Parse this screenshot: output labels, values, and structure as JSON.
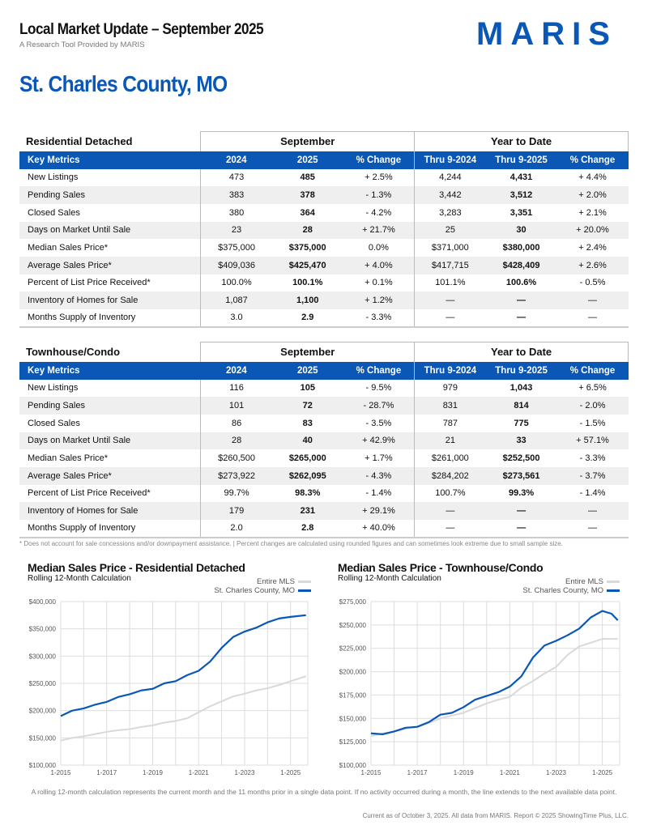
{
  "header": {
    "title": "Local Market Update – September 2025",
    "subtitle": "A Research Tool Provided by MARIS",
    "logo": "MARIS",
    "county": "St. Charles County, MO"
  },
  "columns": {
    "key": "Key Metrics",
    "sept_group": "September",
    "ytd_group": "Year to Date",
    "c1": "2024",
    "c2": "2025",
    "c3": "% Change",
    "c4": "Thru 9-2024",
    "c5": "Thru 9-2025",
    "c6": "% Change"
  },
  "tables": [
    {
      "section": "Residential Detached",
      "rows": [
        [
          "New Listings",
          "473",
          "485",
          "+ 2.5%",
          "4,244",
          "4,431",
          "+ 4.4%"
        ],
        [
          "Pending Sales",
          "383",
          "378",
          "- 1.3%",
          "3,442",
          "3,512",
          "+ 2.0%"
        ],
        [
          "Closed Sales",
          "380",
          "364",
          "- 4.2%",
          "3,283",
          "3,351",
          "+ 2.1%"
        ],
        [
          "Days on Market Until Sale",
          "23",
          "28",
          "+ 21.7%",
          "25",
          "30",
          "+ 20.0%"
        ],
        [
          "Median Sales Price*",
          "$375,000",
          "$375,000",
          "0.0%",
          "$371,000",
          "$380,000",
          "+ 2.4%"
        ],
        [
          "Average Sales Price*",
          "$409,036",
          "$425,470",
          "+ 4.0%",
          "$417,715",
          "$428,409",
          "+ 2.6%"
        ],
        [
          "Percent of List Price Received*",
          "100.0%",
          "100.1%",
          "+ 0.1%",
          "101.1%",
          "100.6%",
          "- 0.5%"
        ],
        [
          "Inventory of Homes for Sale",
          "1,087",
          "1,100",
          "+ 1.2%",
          "—",
          "—",
          "—"
        ],
        [
          "Months Supply of Inventory",
          "3.0",
          "2.9",
          "- 3.3%",
          "—",
          "—",
          "—"
        ]
      ]
    },
    {
      "section": "Townhouse/Condo",
      "rows": [
        [
          "New Listings",
          "116",
          "105",
          "- 9.5%",
          "979",
          "1,043",
          "+ 6.5%"
        ],
        [
          "Pending Sales",
          "101",
          "72",
          "- 28.7%",
          "831",
          "814",
          "- 2.0%"
        ],
        [
          "Closed Sales",
          "86",
          "83",
          "- 3.5%",
          "787",
          "775",
          "- 1.5%"
        ],
        [
          "Days on Market Until Sale",
          "28",
          "40",
          "+ 42.9%",
          "21",
          "33",
          "+ 57.1%"
        ],
        [
          "Median Sales Price*",
          "$260,500",
          "$265,000",
          "+ 1.7%",
          "$261,000",
          "$252,500",
          "- 3.3%"
        ],
        [
          "Average Sales Price*",
          "$273,922",
          "$262,095",
          "- 4.3%",
          "$284,202",
          "$273,561",
          "- 3.7%"
        ],
        [
          "Percent of List Price Received*",
          "99.7%",
          "98.3%",
          "- 1.4%",
          "100.7%",
          "99.3%",
          "- 1.4%"
        ],
        [
          "Inventory of Homes for Sale",
          "179",
          "231",
          "+ 29.1%",
          "—",
          "—",
          "—"
        ],
        [
          "Months Supply of Inventory",
          "2.0",
          "2.8",
          "+ 40.0%",
          "—",
          "—",
          "—"
        ]
      ]
    }
  ],
  "footnote": "* Does not account for sale concessions and/or downpayment assistance. | Percent changes are calculated using rounded figures and can sometimes look extreme due to small sample size.",
  "rolling_note": "A rolling 12-month calculation represents the current month and the 11 months prior in a single data point. If no activity occurred during a month, the line extends to the next available data point.",
  "current_note": "Current as of October 3, 2025. All data from MARIS. Report © 2025 ShowingTime Plus, LLC.",
  "colors": {
    "brand": "#0a57b5",
    "mls": "#d9d9d9"
  },
  "chart_data": [
    {
      "type": "line",
      "title": "Median Sales Price - Residential Detached",
      "subtitle": "Rolling 12-Month Calculation",
      "ylim": [
        100000,
        400000
      ],
      "yticks": [
        100000,
        150000,
        200000,
        250000,
        300000,
        350000,
        400000
      ],
      "yticklabels": [
        "$100,000",
        "$150,000",
        "$200,000",
        "$250,000",
        "$300,000",
        "$350,000",
        "$400,000"
      ],
      "xlim": [
        2015,
        2025.75
      ],
      "xticks": [
        2015,
        2017,
        2019,
        2021,
        2023,
        2025
      ],
      "xticklabels": [
        "1-2015",
        "1-2017",
        "1-2019",
        "1-2021",
        "1-2023",
        "1-2025"
      ],
      "legend_position": "top-right",
      "series": [
        {
          "name": "Entire MLS",
          "color": "#d9d9d9",
          "points": [
            [
              2015,
              145000
            ],
            [
              2015.5,
              150000
            ],
            [
              2016,
              153000
            ],
            [
              2016.5,
              157000
            ],
            [
              2017,
              161000
            ],
            [
              2017.5,
              164000
            ],
            [
              2018,
              166000
            ],
            [
              2018.5,
              170000
            ],
            [
              2019,
              173000
            ],
            [
              2019.5,
              178000
            ],
            [
              2020,
              181000
            ],
            [
              2020.5,
              186000
            ],
            [
              2021,
              197000
            ],
            [
              2021.5,
              208000
            ],
            [
              2022,
              217000
            ],
            [
              2022.5,
              226000
            ],
            [
              2023,
              231000
            ],
            [
              2023.5,
              237000
            ],
            [
              2024,
              241000
            ],
            [
              2024.5,
              247000
            ],
            [
              2025,
              254000
            ],
            [
              2025.67,
              263000
            ]
          ]
        },
        {
          "name": "St. Charles County, MO",
          "color": "#0a57b5",
          "points": [
            [
              2015,
              190000
            ],
            [
              2015.5,
              200000
            ],
            [
              2016,
              204000
            ],
            [
              2016.5,
              211000
            ],
            [
              2017,
              216000
            ],
            [
              2017.5,
              225000
            ],
            [
              2018,
              230000
            ],
            [
              2018.5,
              237000
            ],
            [
              2019,
              240000
            ],
            [
              2019.5,
              250000
            ],
            [
              2020,
              254000
            ],
            [
              2020.5,
              265000
            ],
            [
              2021,
              273000
            ],
            [
              2021.5,
              290000
            ],
            [
              2022,
              315000
            ],
            [
              2022.5,
              335000
            ],
            [
              2023,
              345000
            ],
            [
              2023.5,
              352000
            ],
            [
              2024,
              362000
            ],
            [
              2024.5,
              369000
            ],
            [
              2025,
              372000
            ],
            [
              2025.67,
              375000
            ]
          ]
        }
      ]
    },
    {
      "type": "line",
      "title": "Median Sales Price - Townhouse/Condo",
      "subtitle": "Rolling 12-Month Calculation",
      "ylim": [
        100000,
        275000
      ],
      "yticks": [
        100000,
        125000,
        150000,
        175000,
        200000,
        225000,
        250000,
        275000
      ],
      "yticklabels": [
        "$100,000",
        "$125,000",
        "$150,000",
        "$175,000",
        "$200,000",
        "$225,000",
        "$250,000",
        "$275,000"
      ],
      "xlim": [
        2015,
        2025.75
      ],
      "xticks": [
        2015,
        2017,
        2019,
        2021,
        2023,
        2025
      ],
      "xticklabels": [
        "1-2015",
        "1-2017",
        "1-2019",
        "1-2021",
        "1-2023",
        "1-2025"
      ],
      "legend_position": "top-right",
      "series": [
        {
          "name": "Entire MLS",
          "color": "#d9d9d9",
          "points": [
            [
              2015,
              131000
            ],
            [
              2015.5,
              134000
            ],
            [
              2016,
              136000
            ],
            [
              2016.5,
              139000
            ],
            [
              2017,
              141000
            ],
            [
              2017.5,
              145000
            ],
            [
              2018,
              150000
            ],
            [
              2018.5,
              153000
            ],
            [
              2019,
              156000
            ],
            [
              2019.5,
              161000
            ],
            [
              2020,
              166000
            ],
            [
              2020.5,
              170000
            ],
            [
              2021,
              173000
            ],
            [
              2021.5,
              183000
            ],
            [
              2022,
              190000
            ],
            [
              2022.5,
              198000
            ],
            [
              2023,
              205000
            ],
            [
              2023.5,
              218000
            ],
            [
              2024,
              227000
            ],
            [
              2024.5,
              231000
            ],
            [
              2025,
              235000
            ],
            [
              2025.67,
              235000
            ]
          ]
        },
        {
          "name": "St. Charles County, MO",
          "color": "#0a57b5",
          "points": [
            [
              2015,
              134000
            ],
            [
              2015.5,
              133000
            ],
            [
              2016,
              136000
            ],
            [
              2016.5,
              140000
            ],
            [
              2017,
              141000
            ],
            [
              2017.5,
              146000
            ],
            [
              2018,
              154000
            ],
            [
              2018.5,
              156000
            ],
            [
              2019,
              162000
            ],
            [
              2019.5,
              170000
            ],
            [
              2020,
              174000
            ],
            [
              2020.5,
              178000
            ],
            [
              2021,
              184000
            ],
            [
              2021.5,
              195000
            ],
            [
              2022,
              215000
            ],
            [
              2022.5,
              228000
            ],
            [
              2023,
              233000
            ],
            [
              2023.5,
              239000
            ],
            [
              2024,
              246000
            ],
            [
              2024.5,
              258000
            ],
            [
              2025,
              265000
            ],
            [
              2025.4,
              262000
            ],
            [
              2025.67,
              255000
            ]
          ]
        }
      ]
    }
  ]
}
